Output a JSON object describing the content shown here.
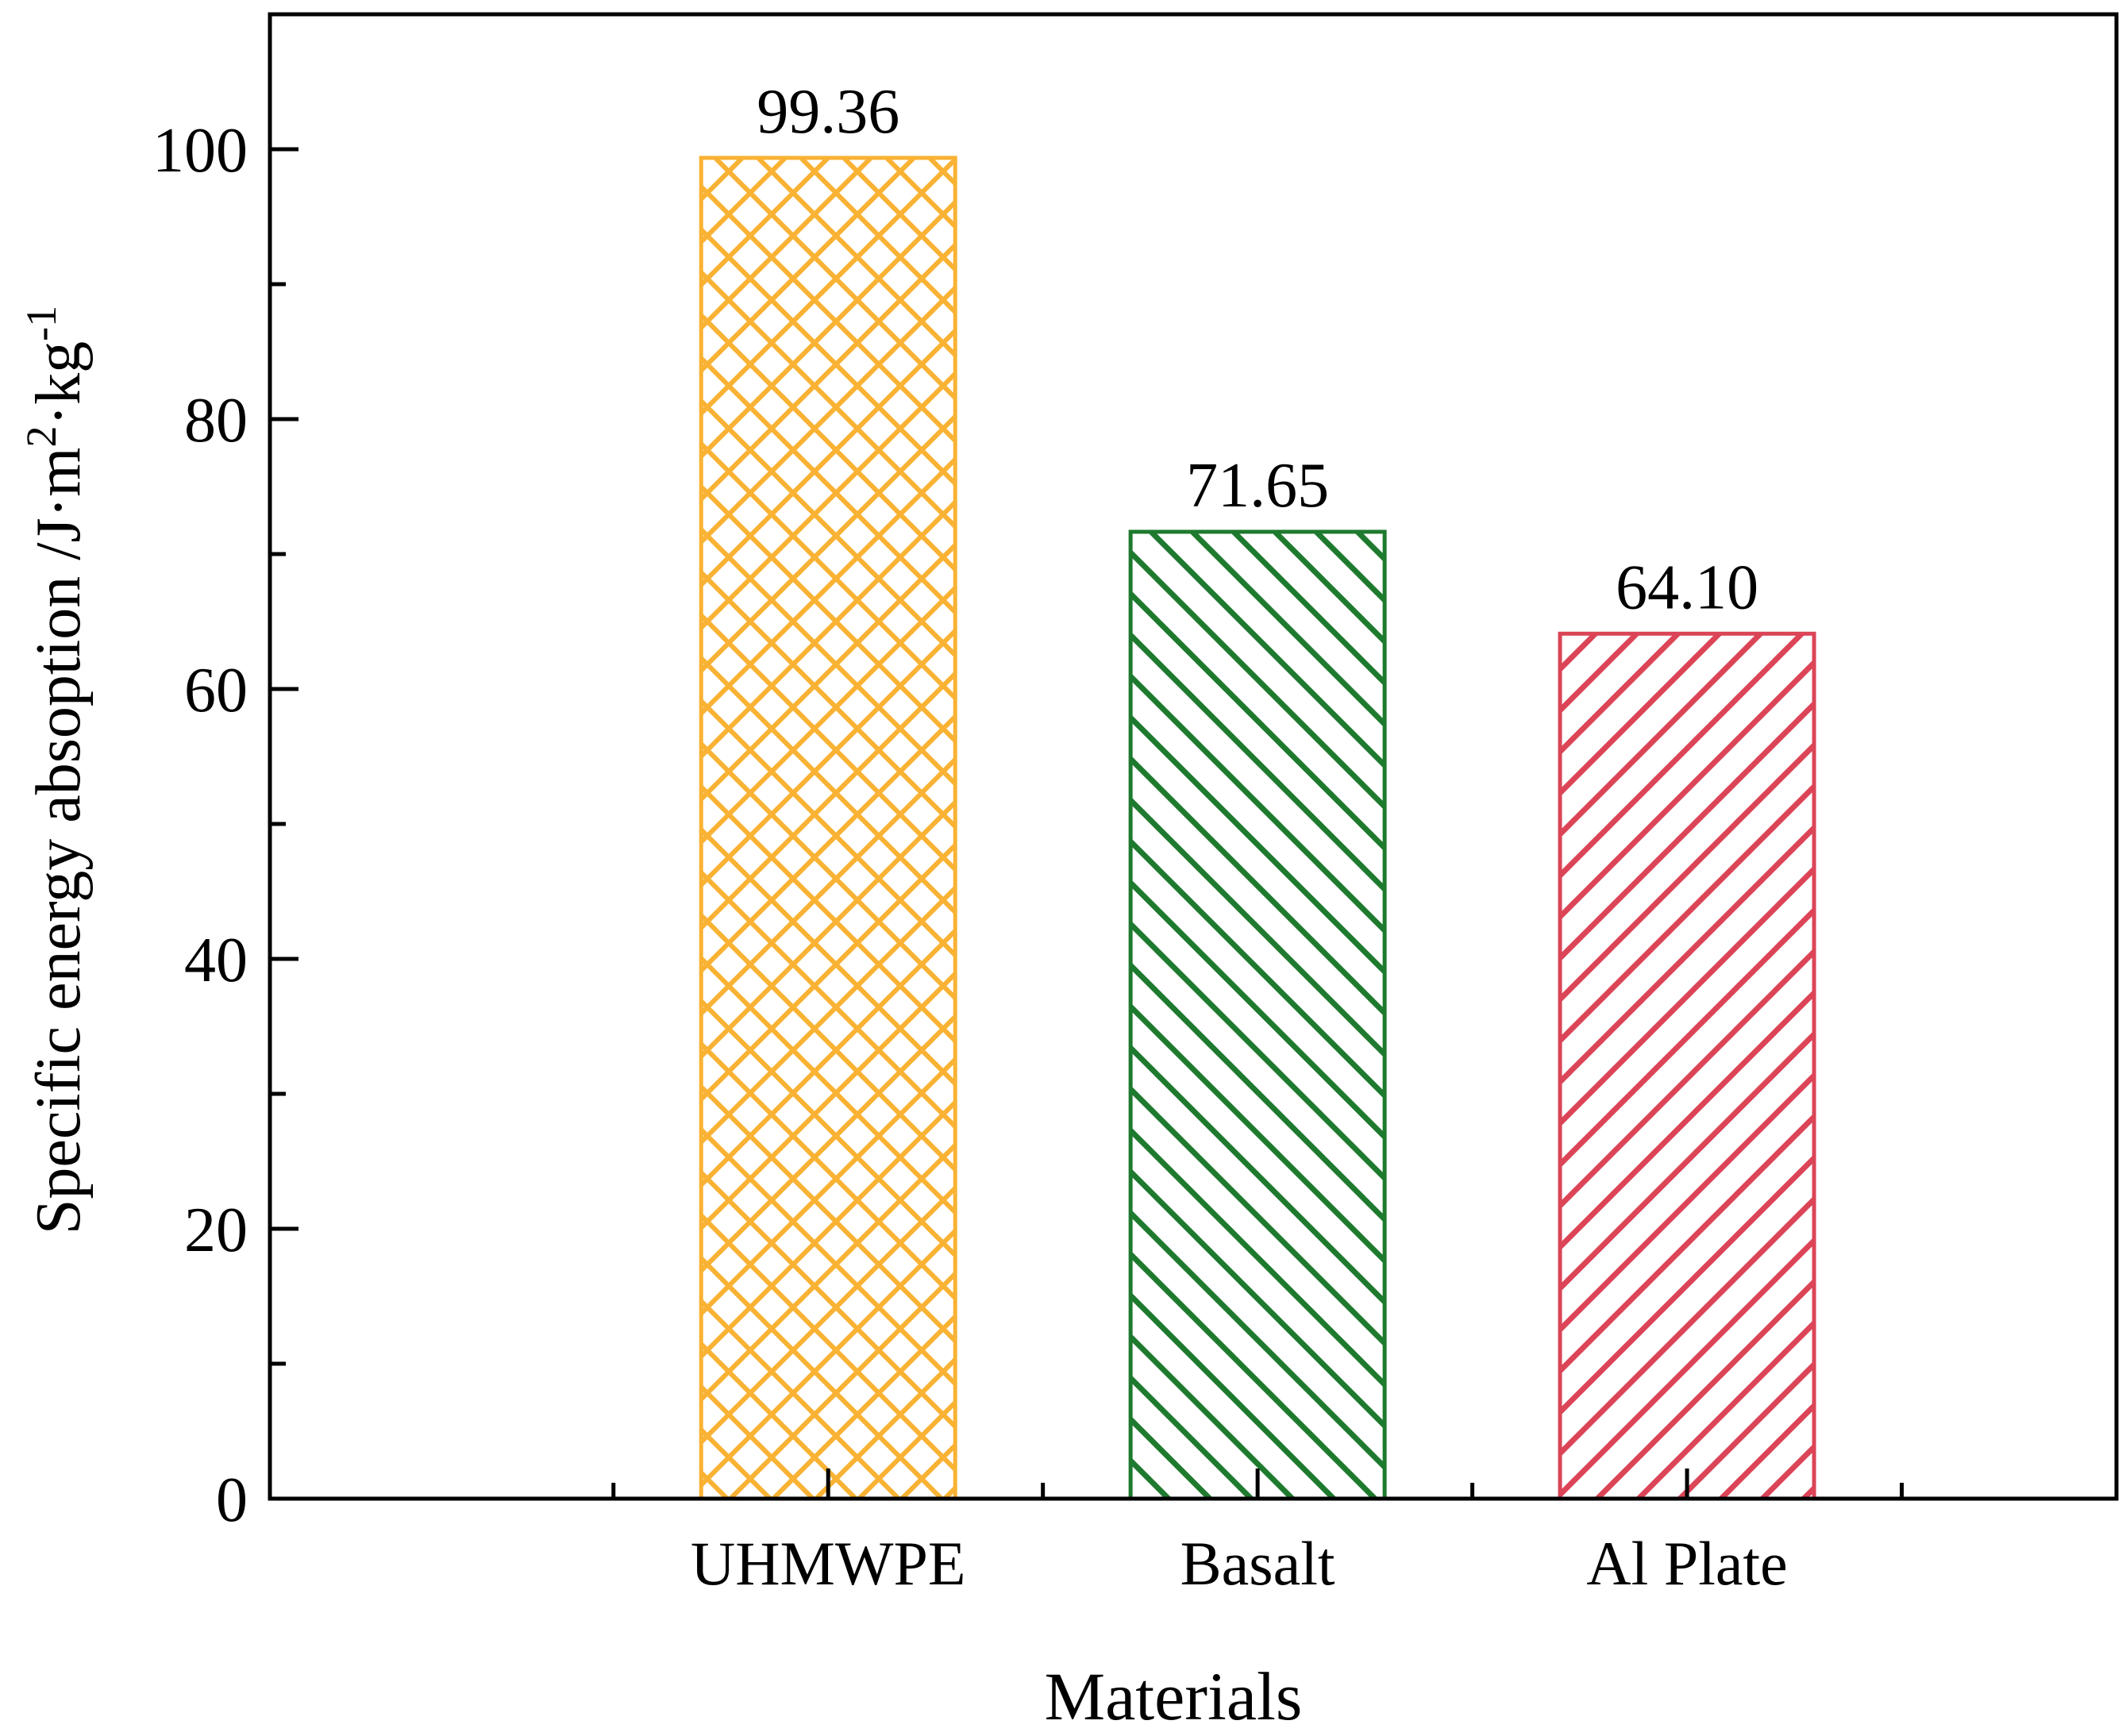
{
  "chart_data": {
    "type": "bar",
    "categories": [
      "UHMWPE",
      "Basalt",
      "Al Plate"
    ],
    "values": [
      99.36,
      71.65,
      64.1
    ],
    "data_labels": [
      "99.36",
      "71.65",
      "64.10"
    ],
    "title": "",
    "xlabel": "Materials",
    "ylabel": {
      "text": "Specific energy absoption /J·m",
      "sup1": "2",
      "mid": "·kg",
      "sup2": "-1"
    },
    "ylim": [
      0,
      110
    ],
    "y_ticks": [
      0,
      20,
      40,
      60,
      80,
      100
    ],
    "y_tick_labels": [
      "0",
      "20",
      "40",
      "60",
      "80",
      "100"
    ],
    "y_minor_ticks": [
      10,
      30,
      50,
      70,
      90
    ],
    "grid": false,
    "legend": "none",
    "bar_styles": [
      {
        "color": "#F9B233",
        "pattern": "crosshatch"
      },
      {
        "color": "#1E7A2E",
        "pattern": "diagonal-down"
      },
      {
        "color": "#DB4557",
        "pattern": "diagonal-up"
      }
    ]
  }
}
